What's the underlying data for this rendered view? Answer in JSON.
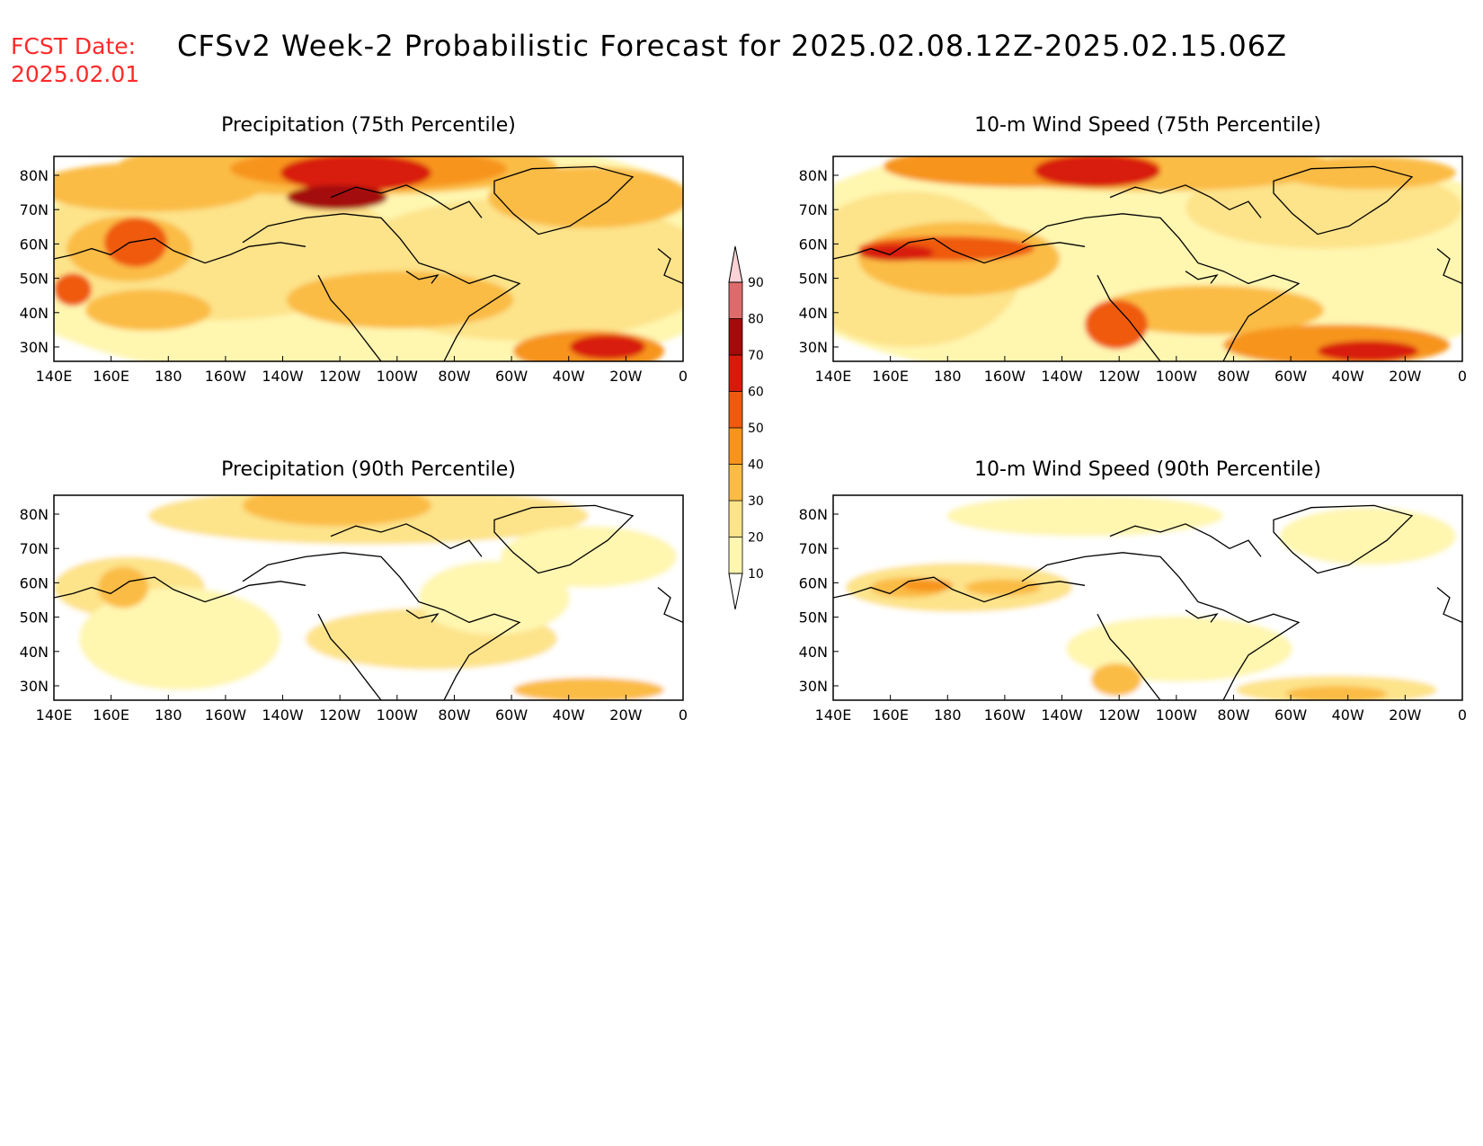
{
  "header": {
    "fcst_label": "FCST Date:",
    "fcst_date": "2025.02.01",
    "title": "CFSv2 Week-2 Probabilistic Forecast for 2025.02.08.12Z-2025.02.15.06Z"
  },
  "axes": {
    "lon_labels": [
      "140E",
      "160E",
      "180",
      "160W",
      "140W",
      "120W",
      "100W",
      "80W",
      "60W",
      "40W",
      "20W",
      "0"
    ],
    "lat_labels": [
      "80N",
      "70N",
      "60N",
      "50N",
      "40N",
      "30N"
    ]
  },
  "colorbar": {
    "levels": [
      "10",
      "20",
      "30",
      "40",
      "50",
      "60",
      "70",
      "80",
      "90"
    ],
    "colors": [
      "#ffffff",
      "#fff6b0",
      "#fde38a",
      "#fbbc45",
      "#f7941c",
      "#ef5a10",
      "#d81a0c",
      "#a40a0a",
      "#dd6b6b",
      "#f0a4a8",
      "#fbd2d6"
    ]
  },
  "panels": [
    {
      "id": "precip-75",
      "title": "Precipitation (75th Percentile)"
    },
    {
      "id": "wind-75",
      "title": "10-m Wind Speed (75th Percentile)"
    },
    {
      "id": "precip-90",
      "title": "Precipitation (90th Percentile)"
    },
    {
      "id": "wind-90",
      "title": "10-m Wind Speed (90th Percentile)"
    }
  ]
}
